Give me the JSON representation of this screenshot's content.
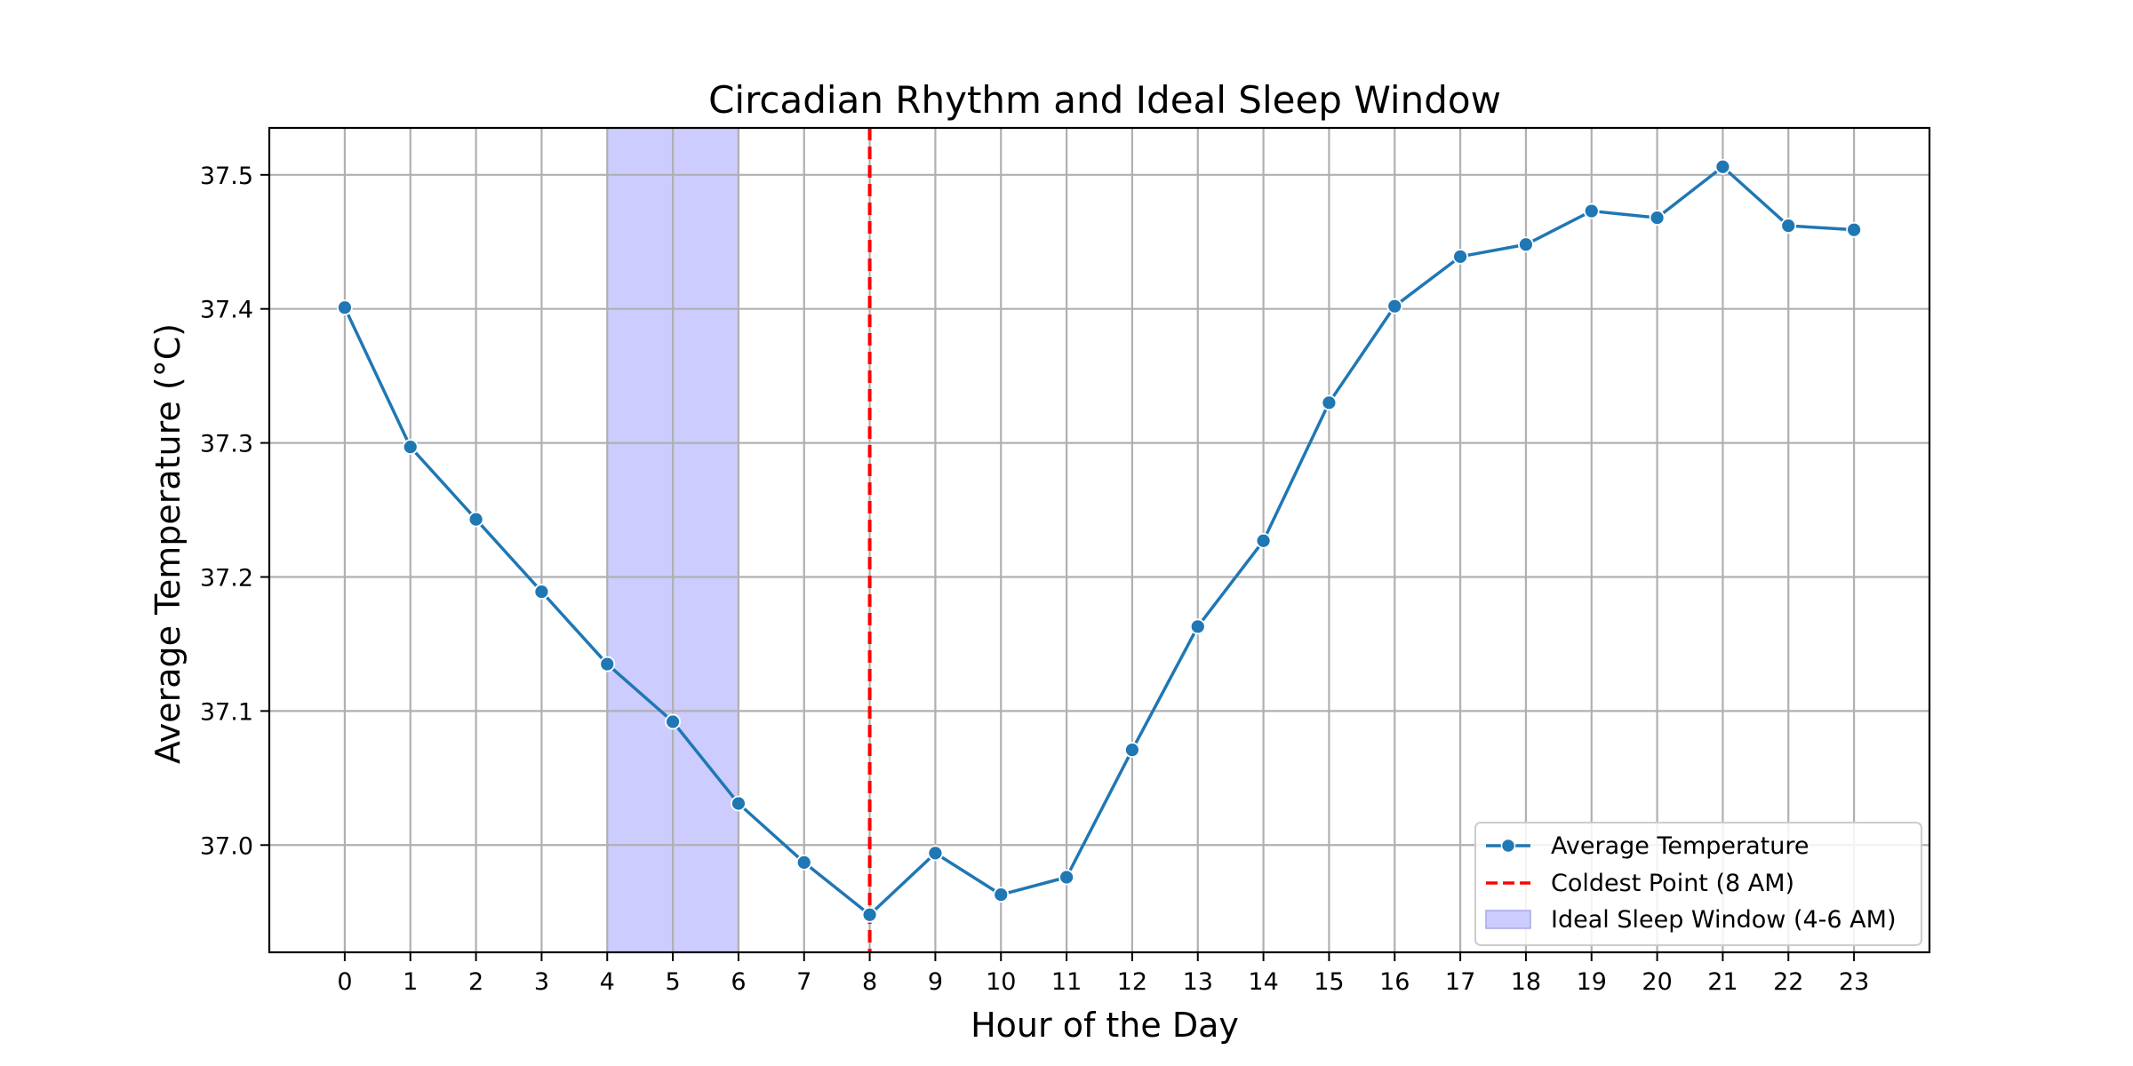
{
  "chart_data": {
    "type": "line",
    "title": "Circadian Rhythm and Ideal Sleep Window",
    "xlabel": "Hour of the Day",
    "ylabel": "Average Temperature (°C)",
    "x": [
      0,
      1,
      2,
      3,
      4,
      5,
      6,
      7,
      8,
      9,
      10,
      11,
      12,
      13,
      14,
      15,
      16,
      17,
      18,
      19,
      20,
      21,
      22,
      23
    ],
    "series": [
      {
        "name": "Average Temperature",
        "color": "#1f77b4",
        "values": [
          37.401,
          37.297,
          37.243,
          37.189,
          37.135,
          37.092,
          37.031,
          36.987,
          36.948,
          36.994,
          36.963,
          36.976,
          37.071,
          37.163,
          37.227,
          37.33,
          37.402,
          37.439,
          37.448,
          37.473,
          37.468,
          37.506,
          37.462,
          37.459
        ]
      }
    ],
    "annotations": {
      "vline": {
        "x": 8,
        "label": "Coldest Point (8 AM)",
        "color": "#ff0000",
        "style": "dashed"
      },
      "span": {
        "x_start": 4,
        "x_end": 6,
        "label": "Ideal Sleep Window (4-6 AM)",
        "color": "#ccccff"
      }
    },
    "xlim": [
      -1.15,
      24.15
    ],
    "ylim": [
      36.92,
      37.535
    ],
    "xticks": [
      "0",
      "1",
      "2",
      "3",
      "4",
      "5",
      "6",
      "7",
      "8",
      "9",
      "10",
      "11",
      "12",
      "13",
      "14",
      "15",
      "16",
      "17",
      "18",
      "19",
      "20",
      "21",
      "22",
      "23"
    ],
    "yticks": [
      "37.0",
      "37.1",
      "37.2",
      "37.3",
      "37.4",
      "37.5"
    ],
    "ytick_values": [
      37.0,
      37.1,
      37.2,
      37.3,
      37.4,
      37.5
    ],
    "grid": true,
    "legend_position": "bottom-right"
  }
}
